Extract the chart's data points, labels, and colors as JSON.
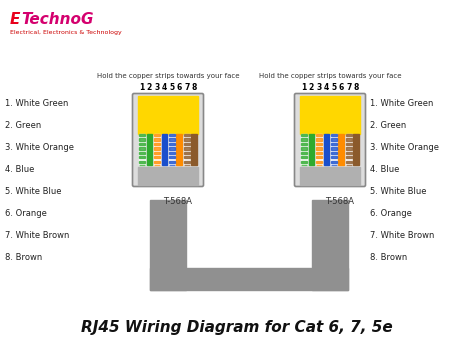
{
  "title": "RJ45 Wiring Diagram for Cat 6, 7, 5e",
  "title_fontsize": 11,
  "title_style": "italic",
  "title_fontweight": "bold",
  "background_color": "#ffffff",
  "instruction_text": "Hold the copper strips towards your face",
  "standard_label": "T-568A",
  "wire_labels": [
    "1. White Green",
    "2. Green",
    "3. White Orange",
    "4. Blue",
    "5. White Blue",
    "6. Orange",
    "7. White Brown",
    "8. Brown"
  ],
  "wire_display": [
    [
      "#ffffff",
      "#2eaa2e"
    ],
    [
      "#2eaa2e",
      "#2eaa2e"
    ],
    [
      "#ffffff",
      "#ff8c00"
    ],
    [
      "#1a4fcc",
      "#1a4fcc"
    ],
    [
      "#ffffff",
      "#1a4fcc"
    ],
    [
      "#ff8c00",
      "#ff8c00"
    ],
    [
      "#ffffff",
      "#8B5A2B"
    ],
    [
      "#8B5A2B",
      "#8B5A2B"
    ]
  ],
  "connector_body_color": "#aaaaaa",
  "connector_face_color": "#c8c8c8",
  "connector_clip_color": "#b0b0b0",
  "pins_top_color": "#FFD700",
  "cable_color": "#909090",
  "pin_labels": [
    "1",
    "2",
    "3",
    "4",
    "5",
    "6",
    "7",
    "8"
  ]
}
